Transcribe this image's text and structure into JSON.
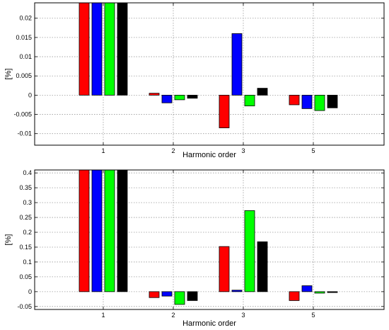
{
  "chart_data": [
    {
      "type": "bar",
      "categories": [
        "1",
        "2",
        "3",
        "5"
      ],
      "xlabel": "Harmonic order",
      "ylabel": "[%]",
      "ylim": [
        -0.013,
        0.024
      ],
      "yticks": [
        -0.01,
        -0.005,
        0,
        0.005,
        0.01,
        0.015,
        0.02
      ],
      "ytick_labels": [
        "-0.01",
        "-0.005",
        "0",
        "0.005",
        "0.01",
        "0.015",
        "0.02"
      ],
      "grid": true,
      "colors": [
        "#ff0000",
        "#0000ff",
        "#00ff00",
        "#000000"
      ],
      "series": [
        {
          "values": [
            0.024,
            0.0005,
            -0.0085,
            -0.0025
          ]
        },
        {
          "values": [
            0.024,
            -0.002,
            0.016,
            -0.0035
          ]
        },
        {
          "values": [
            0.024,
            -0.0012,
            -0.0028,
            -0.004
          ]
        },
        {
          "values": [
            0.024,
            -0.0008,
            0.0018,
            -0.0033
          ]
        }
      ]
    },
    {
      "type": "bar",
      "categories": [
        "1",
        "2",
        "3",
        "5"
      ],
      "xlabel": "Harmonic order",
      "ylabel": "[%]",
      "ylim": [
        -0.06,
        0.41
      ],
      "yticks": [
        -0.05,
        0,
        0.05,
        0.1,
        0.15,
        0.2,
        0.25,
        0.3,
        0.35,
        0.4
      ],
      "ytick_labels": [
        "-0.05",
        "0",
        "0.05",
        "0.1",
        "0.15",
        "0.2",
        "0.25",
        "0.3",
        "0.35",
        "0.4"
      ],
      "grid": true,
      "colors": [
        "#ff0000",
        "#0000ff",
        "#00ff00",
        "#000000"
      ],
      "series": [
        {
          "values": [
            0.41,
            -0.02,
            0.152,
            -0.03
          ]
        },
        {
          "values": [
            0.41,
            -0.015,
            0.005,
            0.02
          ]
        },
        {
          "values": [
            0.41,
            -0.043,
            0.273,
            -0.005
          ]
        },
        {
          "values": [
            0.41,
            -0.03,
            0.168,
            -0.003
          ]
        }
      ]
    }
  ]
}
